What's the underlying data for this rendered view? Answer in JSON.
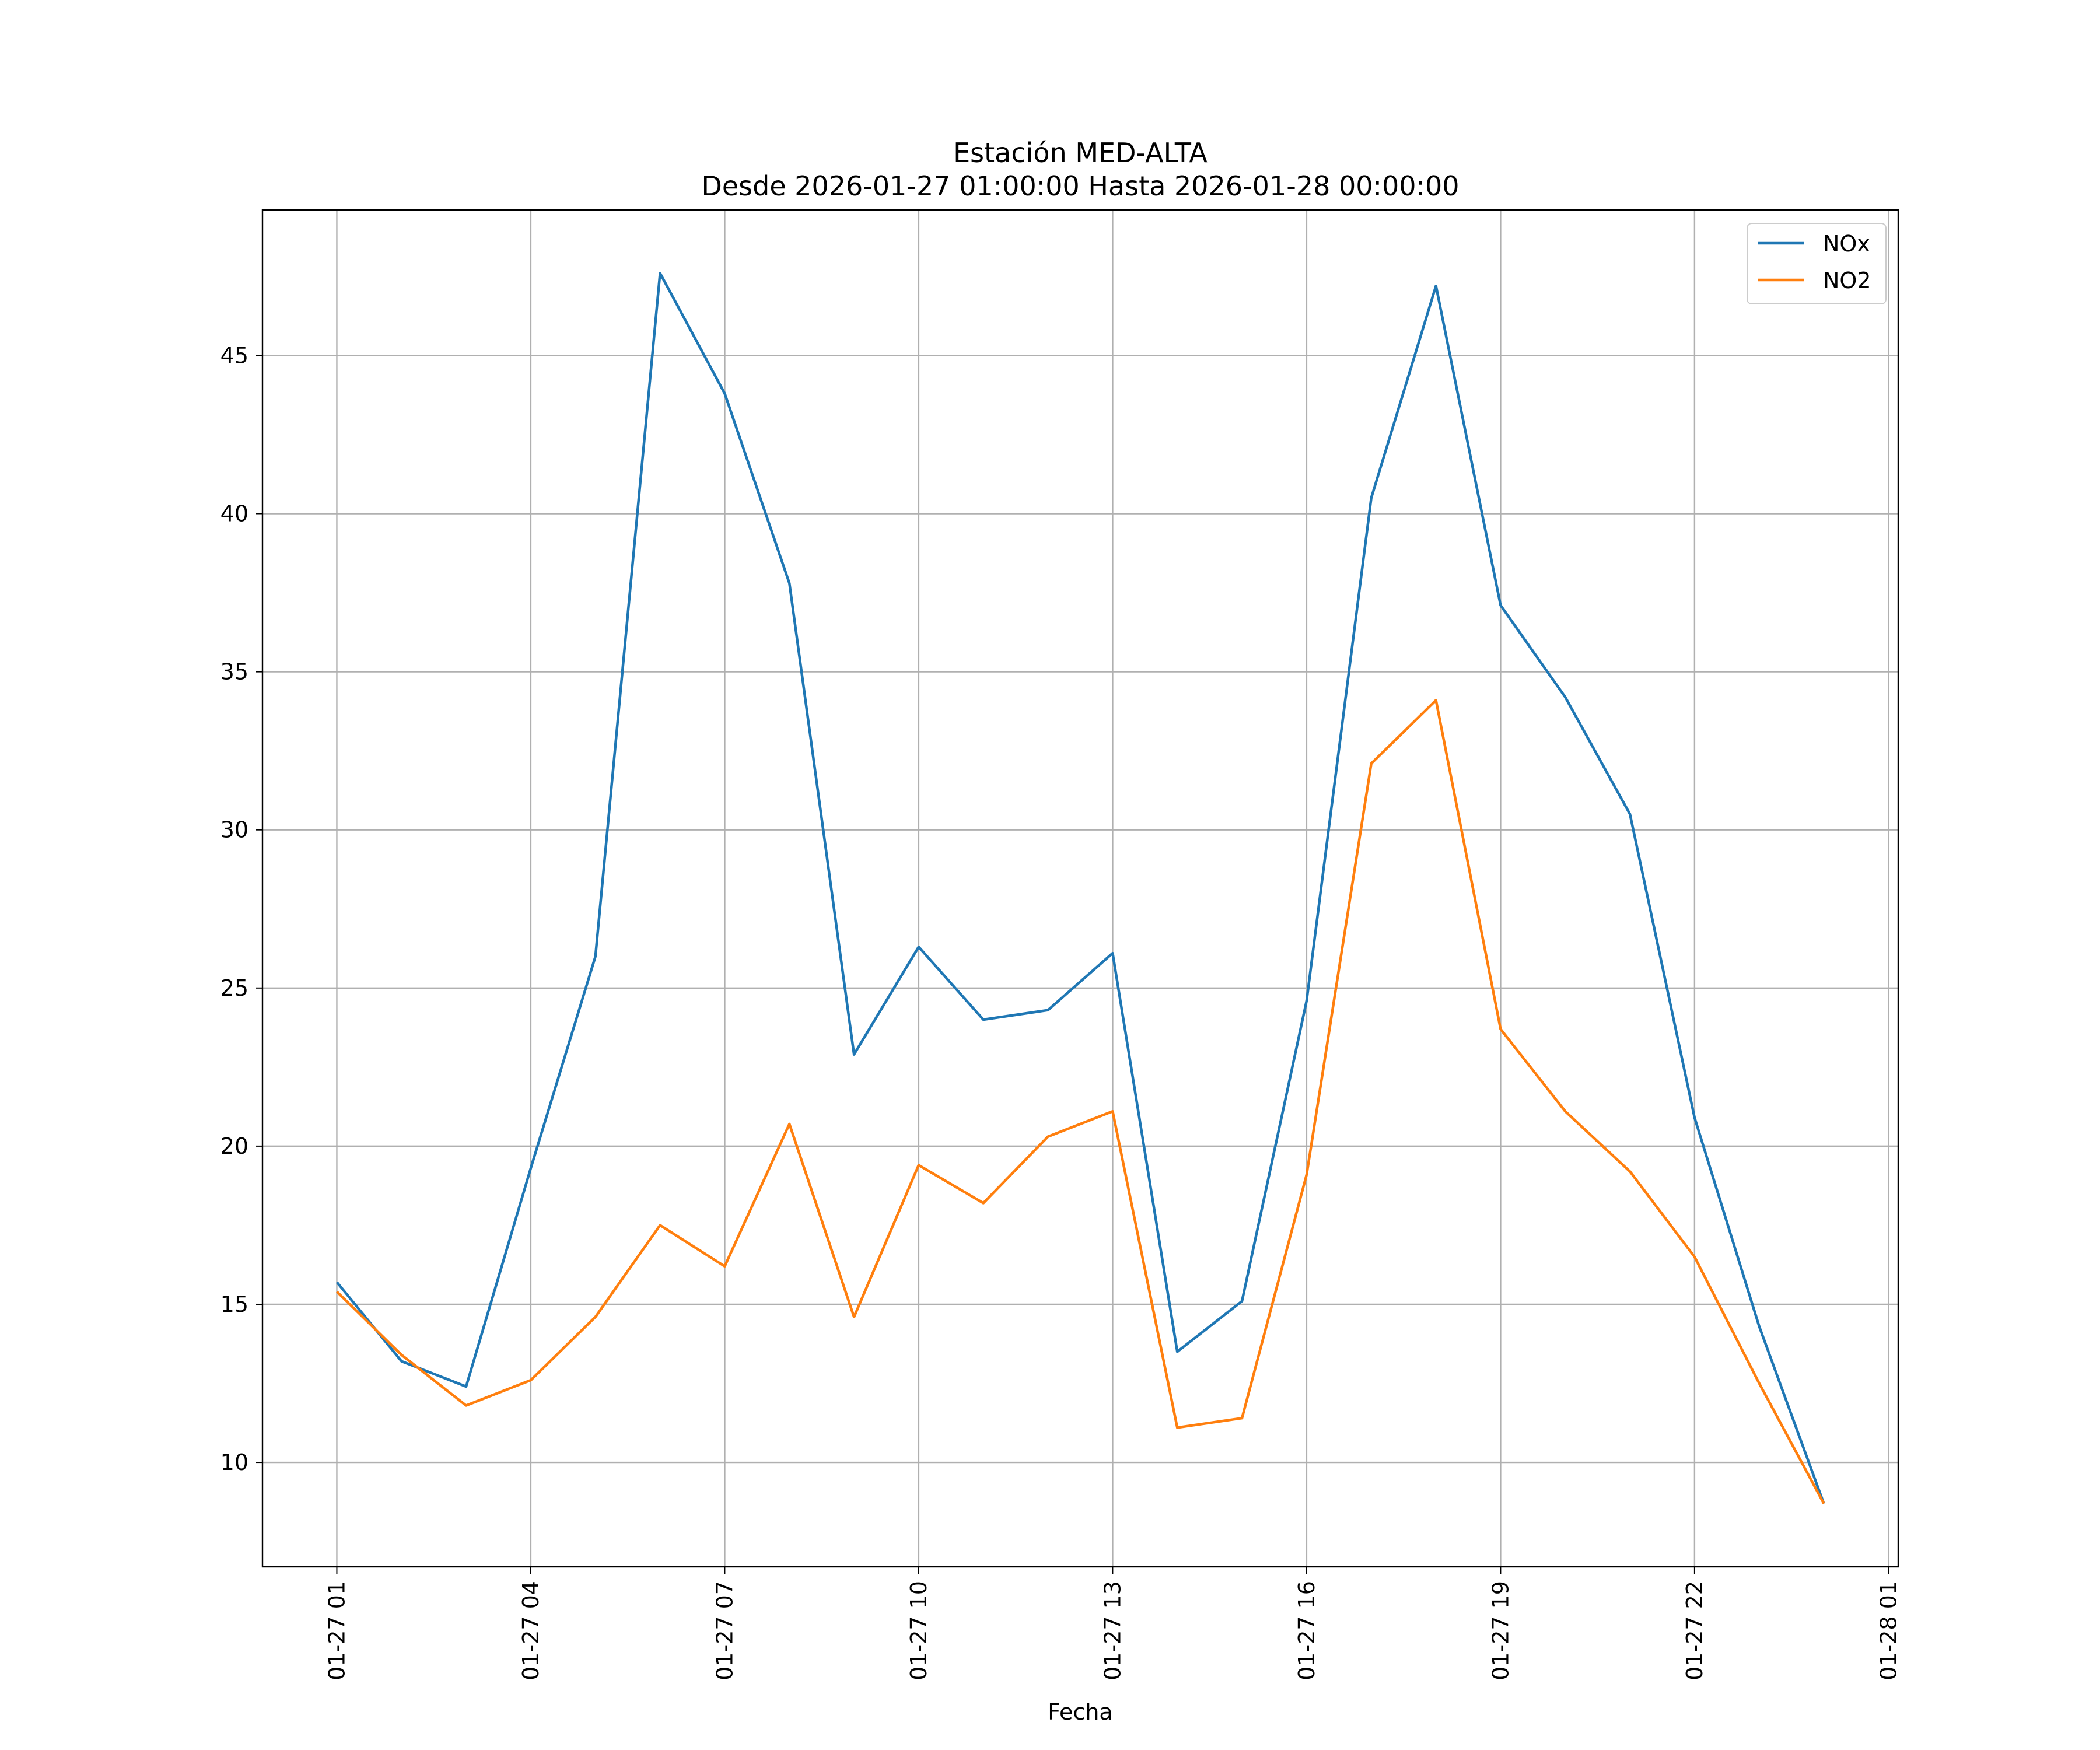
{
  "chart_data": {
    "type": "line",
    "title": "Estación MED-ALTA",
    "subtitle": "Desde 2026-01-27 01:00:00 Hasta 2026-01-28 00:00:00",
    "xlabel": "Fecha",
    "ylabel": "",
    "x": [
      "2026-01-27 01:00",
      "2026-01-27 02:00",
      "2026-01-27 03:00",
      "2026-01-27 04:00",
      "2026-01-27 05:00",
      "2026-01-27 06:00",
      "2026-01-27 07:00",
      "2026-01-27 08:00",
      "2026-01-27 09:00",
      "2026-01-27 10:00",
      "2026-01-27 11:00",
      "2026-01-27 12:00",
      "2026-01-27 13:00",
      "2026-01-27 14:00",
      "2026-01-27 15:00",
      "2026-01-27 16:00",
      "2026-01-27 17:00",
      "2026-01-27 18:00",
      "2026-01-27 19:00",
      "2026-01-27 20:00",
      "2026-01-27 21:00",
      "2026-01-27 22:00",
      "2026-01-27 23:00",
      "2026-01-28 00:00"
    ],
    "series": [
      {
        "name": "NOx",
        "color": "#1f77b4",
        "values": [
          15.7,
          13.2,
          12.4,
          19.3,
          26.0,
          47.6,
          43.8,
          37.8,
          22.9,
          26.3,
          24.0,
          24.3,
          26.1,
          13.5,
          15.1,
          24.6,
          40.5,
          47.2,
          37.1,
          34.2,
          30.5,
          20.9,
          14.3,
          8.7
        ]
      },
      {
        "name": "NO2",
        "color": "#ff7f0e",
        "values": [
          15.4,
          13.4,
          11.8,
          12.6,
          14.6,
          17.5,
          16.2,
          20.7,
          14.6,
          19.4,
          18.2,
          20.3,
          21.1,
          11.1,
          11.4,
          19.1,
          32.1,
          34.1,
          23.7,
          21.1,
          19.2,
          16.5,
          12.5,
          8.7
        ]
      }
    ],
    "x_ticks": [
      {
        "label": "01-27 01",
        "at": "2026-01-27 01:00"
      },
      {
        "label": "01-27 04",
        "at": "2026-01-27 04:00"
      },
      {
        "label": "01-27 07",
        "at": "2026-01-27 07:00"
      },
      {
        "label": "01-27 10",
        "at": "2026-01-27 10:00"
      },
      {
        "label": "01-27 13",
        "at": "2026-01-27 13:00"
      },
      {
        "label": "01-27 16",
        "at": "2026-01-27 16:00"
      },
      {
        "label": "01-27 19",
        "at": "2026-01-27 19:00"
      },
      {
        "label": "01-27 22",
        "at": "2026-01-27 22:00"
      },
      {
        "label": "01-28 01",
        "at": "2026-01-28 01:00"
      }
    ],
    "y_ticks": [
      10,
      15,
      20,
      25,
      30,
      35,
      40,
      45
    ],
    "xlim": [
      "2026-01-26 23:51",
      "2026-01-28 01:09"
    ],
    "ylim": [
      6.7,
      49.6
    ],
    "grid": true,
    "legend": "top-right"
  }
}
